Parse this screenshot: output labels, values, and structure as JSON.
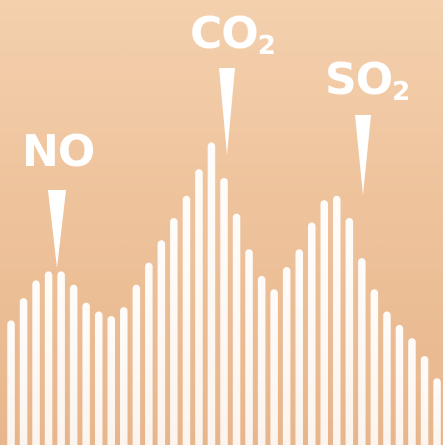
{
  "labels": {
    "no": "NO",
    "co2_main": "CO",
    "co2_sub": "2",
    "so2_main": "SO",
    "so2_sub": "2"
  },
  "colors": {
    "bars": "#ffffff",
    "background_top": "#f4d0ae",
    "background_bottom": "#e8b68c"
  },
  "bar_levels": [
    0.28,
    0.33,
    0.37,
    0.39,
    0.39,
    0.36,
    0.32,
    0.3,
    0.29,
    0.31,
    0.36,
    0.41,
    0.46,
    0.51,
    0.56,
    0.62,
    0.68,
    0.6,
    0.52,
    0.44,
    0.38,
    0.35,
    0.4,
    0.44,
    0.5,
    0.55,
    0.56,
    0.51,
    0.42,
    0.35,
    0.3,
    0.27,
    0.24,
    0.2,
    0.15
  ]
}
